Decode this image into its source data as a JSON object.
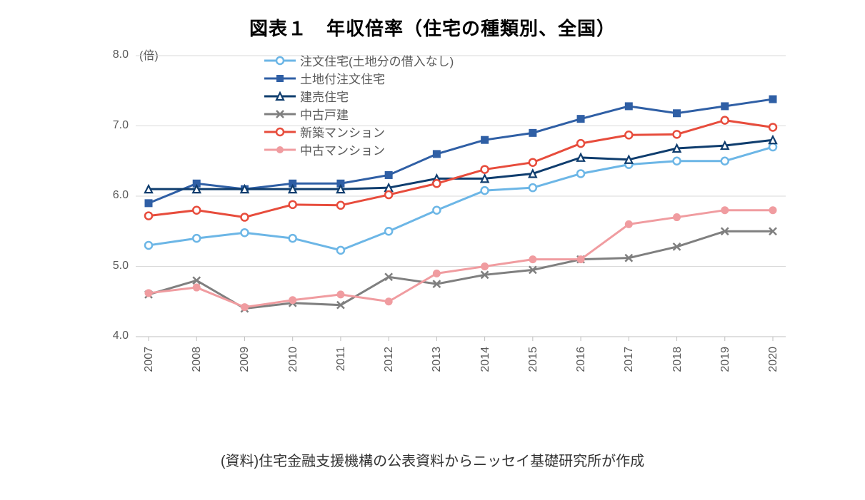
{
  "title": "図表１　年収倍率（住宅の種類別、全国）",
  "caption": "(資料)住宅金融支援機構の公表資料からニッセイ基礎研究所が作成",
  "chart": {
    "type": "line",
    "y_unit": "(倍)",
    "background_color": "#ffffff",
    "grid_color": "#d9d9d9",
    "axis_color": "#bfbfbf",
    "tick_font_color": "#595959",
    "tick_fontsize": 16,
    "title_fontsize": 26,
    "caption_fontsize": 20,
    "line_width": 3,
    "marker_size": 10,
    "ylim": [
      4.0,
      8.0
    ],
    "ytick_step": 1.0,
    "yticks": [
      "4.0",
      "5.0",
      "6.0",
      "7.0",
      "8.0"
    ],
    "x_categories": [
      "2007",
      "2008",
      "2009",
      "2010",
      "2011",
      "2012",
      "2013",
      "2014",
      "2015",
      "2016",
      "2017",
      "2018",
      "2019",
      "2020"
    ],
    "series": [
      {
        "name": "注文住宅(土地分の借入なし)",
        "key": "custom-house-no-land",
        "color": "#6cb6e6",
        "marker": "circle-open",
        "values": [
          5.3,
          5.4,
          5.48,
          5.4,
          5.23,
          5.5,
          5.8,
          6.08,
          6.12,
          6.32,
          6.45,
          6.5,
          6.5,
          6.7
        ]
      },
      {
        "name": "土地付注文住宅",
        "key": "custom-house-with-land",
        "color": "#2f5fa5",
        "marker": "square-filled",
        "values": [
          5.9,
          6.18,
          6.1,
          6.18,
          6.18,
          6.3,
          6.6,
          6.8,
          6.9,
          7.1,
          7.28,
          7.18,
          7.28,
          7.38
        ]
      },
      {
        "name": "建売住宅",
        "key": "ready-built-house",
        "color": "#0f3d6e",
        "marker": "triangle-open",
        "values": [
          6.1,
          6.1,
          6.1,
          6.1,
          6.1,
          6.12,
          6.25,
          6.25,
          6.32,
          6.55,
          6.52,
          6.68,
          6.72,
          6.8
        ]
      },
      {
        "name": "中古戸建",
        "key": "used-detached-house",
        "color": "#7f7f7f",
        "marker": "x",
        "values": [
          4.6,
          4.8,
          4.4,
          4.48,
          4.45,
          4.85,
          4.75,
          4.88,
          4.95,
          5.1,
          5.12,
          5.28,
          5.5,
          5.5
        ]
      },
      {
        "name": "新築マンション",
        "key": "new-condo",
        "color": "#e74c3c",
        "marker": "circle-open",
        "values": [
          5.72,
          5.8,
          5.7,
          5.88,
          5.87,
          6.02,
          6.18,
          6.38,
          6.48,
          6.75,
          6.87,
          6.88,
          7.08,
          6.98
        ]
      },
      {
        "name": "中古マンション",
        "key": "used-condo",
        "color": "#f09ca0",
        "marker": "circle-filled",
        "values": [
          4.62,
          4.7,
          4.42,
          4.52,
          4.6,
          4.5,
          4.9,
          5.0,
          5.1,
          5.1,
          5.6,
          5.7,
          5.8,
          5.8
        ]
      }
    ]
  }
}
